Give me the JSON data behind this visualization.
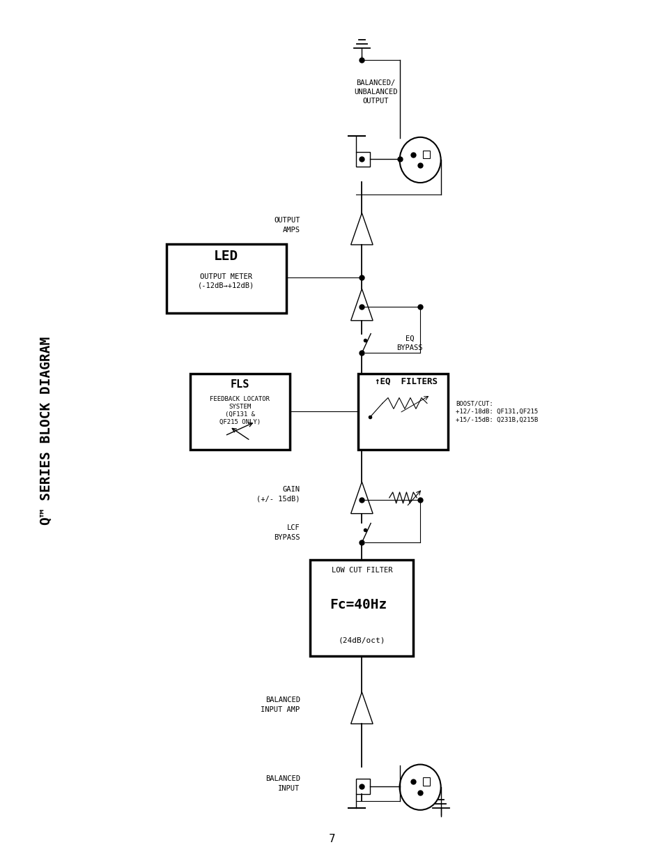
{
  "title": "Q™ SERIES BLOCK DIAGRAM",
  "page_number": "7",
  "background_color": "#ffffff",
  "line_color": "#000000",
  "figsize": [
    9.54,
    12.35
  ],
  "dpi": 100,
  "boost_cut_label": "BOOST/CUT:\n+12/-18dB: QF131,QF215\n+15/-15dB: Q231B,Q215B"
}
